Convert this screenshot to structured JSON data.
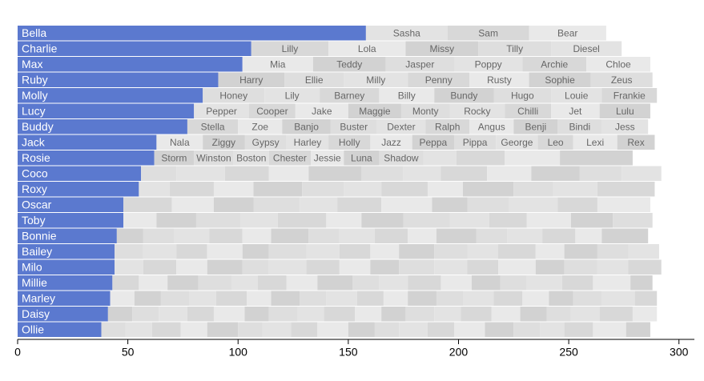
{
  "chart_data": {
    "type": "bar",
    "categories": [
      "Bella",
      "Charlie",
      "Max",
      "Ruby",
      "Molly",
      "Lucy",
      "Buddy",
      "Jack",
      "Rosie",
      "Coco",
      "Roxy",
      "Oscar",
      "Toby",
      "Bonnie",
      "Bailey",
      "Milo",
      "Millie",
      "Marley",
      "Daisy",
      "Ollie"
    ],
    "values": [
      158,
      106,
      102,
      91,
      84,
      80,
      77,
      63,
      62,
      56,
      55,
      48,
      48,
      45,
      44,
      44,
      43,
      42,
      41,
      38
    ],
    "color": "#5b79cf",
    "segment_colors": [
      "#e3e3e3",
      "#d8d8d8",
      "#e9e9e9",
      "#d2d2d2",
      "#dedede"
    ],
    "others": [
      {
        "names": [
          "Sasha",
          "Sam",
          "Bear"
        ],
        "values": [
          37,
          37,
          35
        ]
      },
      {
        "names": [
          "Lilly",
          "Lola",
          "Missy",
          "Tilly",
          "Diesel"
        ],
        "values": [
          35,
          35,
          33,
          33,
          32
        ]
      },
      {
        "names": [
          "Mia",
          "Teddy",
          "Jasper",
          "Poppy",
          "Archie",
          "Chloe"
        ],
        "values": [
          32,
          33,
          31,
          31,
          29,
          29
        ]
      },
      {
        "names": [
          "Harry",
          "Ellie",
          "Milly",
          "Penny",
          "Rusty",
          "Sophie",
          "Zeus"
        ],
        "values": [
          30,
          27,
          29,
          28,
          27,
          28,
          28
        ]
      },
      {
        "names": [
          "Honey",
          "Lily",
          "Barney",
          "Billy",
          "Bundy",
          "Hugo",
          "Louie",
          "Frankie"
        ],
        "values": [
          28,
          25,
          27,
          25,
          27,
          26,
          23,
          25
        ]
      },
      {
        "names": [
          "Pepper",
          "Cooper",
          "Jake",
          "Maggie",
          "Monty",
          "Rocky",
          "Chilli",
          "Jet",
          "Lulu"
        ],
        "values": [
          25,
          21,
          24,
          24,
          22,
          25,
          21,
          22,
          23
        ]
      },
      {
        "names": [
          "Stella",
          "Zoe",
          "Banjo",
          "Buster",
          "Dexter",
          "Ralph",
          "Angus",
          "Benji",
          "Bindi",
          "Jess"
        ],
        "values": [
          23,
          20,
          22,
          21,
          22,
          20,
          20,
          20,
          20,
          21
        ]
      },
      {
        "names": [
          "Nala",
          "Ziggy",
          "Gypsy",
          "Harley",
          "Holly",
          "Jazz",
          "Peppa",
          "Pippa",
          "George",
          "Leo",
          "Lexi",
          "Rex"
        ],
        "values": [
          21,
          19,
          19,
          19,
          19,
          19,
          19,
          19,
          19,
          16,
          20,
          17
        ]
      },
      {
        "names": [
          "Storm",
          "Winston",
          "Boston",
          "Chester",
          "Jessie",
          "Luna",
          "Shadow",
          null,
          null,
          null,
          null
        ],
        "values": [
          18,
          18,
          16,
          19,
          15,
          16,
          20,
          15,
          22,
          25,
          33
        ]
      },
      {
        "names": [
          null,
          null,
          null,
          null,
          null,
          null,
          null,
          null,
          null,
          null,
          null,
          null
        ],
        "values": [
          16,
          22,
          20,
          18,
          24,
          19,
          17,
          21,
          20,
          22,
          19,
          18
        ]
      },
      {
        "names": [
          null,
          null,
          null,
          null,
          null,
          null,
          null,
          null,
          null,
          null,
          null,
          null
        ],
        "values": [
          14,
          20,
          18,
          22,
          19,
          17,
          21,
          16,
          23,
          18,
          20,
          26
        ]
      },
      {
        "names": [
          null,
          null,
          null,
          null,
          null,
          null,
          null,
          null,
          null,
          null,
          null,
          null
        ],
        "values": [
          22,
          19,
          18,
          21,
          17,
          20,
          23,
          16,
          19,
          22,
          18,
          24
        ]
      },
      {
        "names": [
          null,
          null,
          null,
          null,
          null,
          null,
          null,
          null,
          null,
          null,
          null,
          null,
          null
        ],
        "values": [
          15,
          18,
          20,
          17,
          22,
          16,
          19,
          21,
          18,
          17,
          20,
          19,
          18
        ]
      },
      {
        "names": [
          null,
          null,
          null,
          null,
          null,
          null,
          null,
          null,
          null,
          null,
          null,
          null,
          null,
          null,
          null,
          null
        ],
        "values": [
          12,
          14,
          16,
          15,
          13,
          17,
          14,
          16,
          15,
          13,
          18,
          14,
          16,
          15,
          12,
          21
        ]
      },
      {
        "names": [
          null,
          null,
          null,
          null,
          null,
          null,
          null,
          null,
          null,
          null,
          null,
          null,
          null,
          null,
          null,
          null,
          null
        ],
        "values": [
          13,
          15,
          14,
          16,
          12,
          17,
          15,
          14,
          13,
          16,
          15,
          14,
          17,
          13,
          15,
          14,
          14
        ]
      },
      {
        "names": [
          null,
          null,
          null,
          null,
          null,
          null,
          null,
          null,
          null,
          null,
          null,
          null,
          null,
          null,
          null,
          null,
          null
        ],
        "values": [
          13,
          15,
          14,
          16,
          12,
          17,
          15,
          14,
          13,
          16,
          15,
          14,
          17,
          13,
          15,
          14,
          15
        ]
      },
      {
        "names": [
          null,
          null,
          null,
          null,
          null,
          null,
          null,
          null,
          null,
          null,
          null,
          null,
          null,
          null,
          null,
          null,
          null,
          null
        ],
        "values": [
          12,
          13,
          14,
          15,
          12,
          13,
          14,
          16,
          12,
          13,
          15,
          14,
          13,
          12,
          16,
          14,
          17,
          10
        ]
      },
      {
        "names": [
          null,
          null,
          null,
          null,
          null,
          null,
          null,
          null,
          null,
          null,
          null,
          null,
          null,
          null,
          null,
          null,
          null,
          null,
          null,
          null
        ],
        "values": [
          11,
          12,
          13,
          12,
          14,
          11,
          13,
          12,
          14,
          12,
          11,
          13,
          12,
          14,
          13,
          12,
          11,
          13,
          15,
          10
        ]
      },
      {
        "names": [
          null,
          null,
          null,
          null,
          null,
          null,
          null,
          null,
          null,
          null,
          null,
          null,
          null,
          null,
          null,
          null,
          null,
          null,
          null,
          null
        ],
        "values": [
          11,
          12,
          13,
          12,
          14,
          11,
          13,
          12,
          14,
          12,
          11,
          13,
          12,
          14,
          13,
          12,
          11,
          13,
          15,
          11
        ]
      },
      {
        "names": [
          null,
          null,
          null,
          null,
          null,
          null,
          null,
          null,
          null,
          null,
          null,
          null,
          null,
          null,
          null,
          null,
          null,
          null,
          null,
          null
        ],
        "values": [
          11,
          12,
          13,
          12,
          14,
          11,
          13,
          12,
          14,
          12,
          11,
          13,
          12,
          14,
          13,
          12,
          11,
          13,
          15,
          11
        ]
      }
    ],
    "xlim": [
      0,
      307
    ],
    "xticks": [
      0,
      50,
      100,
      150,
      200,
      250,
      300
    ]
  }
}
